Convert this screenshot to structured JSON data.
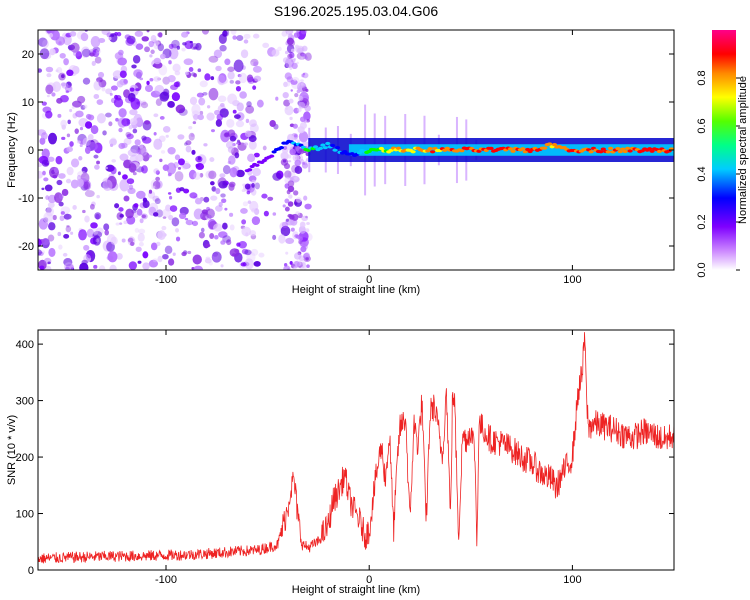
{
  "page": {
    "title": "S196.2025.195.03.04.G06"
  },
  "chart_data": [
    {
      "type": "heatmap",
      "title": "S196.2025.195.03.04.G06",
      "xlabel": "Height of straight line (km)",
      "ylabel": "Frequency (Hz)",
      "xlim": [
        -163,
        150
      ],
      "ylim": [
        -25,
        25
      ],
      "x_ticks": [
        -100,
        0,
        100
      ],
      "y_ticks": [
        -20,
        -10,
        0,
        10,
        20
      ],
      "colorbar": {
        "label": "Normalized spectral amplitude",
        "range": [
          0,
          1
        ],
        "ticks": [
          "0.0",
          "0.2",
          "0.4",
          "0.6",
          "0.8"
        ],
        "colors": [
          "#ffffff",
          "#8a00ff",
          "#0000ff",
          "#00e5ff",
          "#00ff00",
          "#ffff00",
          "#ff0000",
          "#ff0090"
        ]
      },
      "description_points": {
        "noise_region_x": [
          -163,
          -30
        ],
        "ridge": {
          "x": [
            -60,
            -50,
            -40,
            -30,
            -20,
            -10,
            0,
            10,
            20,
            40,
            60,
            80,
            90,
            100,
            120,
            150
          ],
          "freq": [
            -4,
            -2,
            2,
            0,
            1,
            -1,
            0,
            0,
            0,
            0,
            0,
            0,
            1,
            0,
            0,
            0
          ],
          "amplitude": [
            0.3,
            0.35,
            0.45,
            0.55,
            0.5,
            0.4,
            0.6,
            0.75,
            0.8,
            0.85,
            0.95,
            0.9,
            0.85,
            0.9,
            0.9,
            0.9
          ]
        }
      },
      "grid": false
    },
    {
      "type": "line",
      "xlabel": "Height of straight line (km)",
      "ylabel": "SNR (10 * v/v)",
      "xlim": [
        -163,
        150
      ],
      "ylim": [
        0,
        425
      ],
      "x_ticks": [
        -100,
        0,
        100
      ],
      "y_ticks": [
        0,
        100,
        200,
        300,
        400
      ],
      "color": "#ee2222",
      "series": [
        {
          "x": [
            -163,
            -150,
            -130,
            -110,
            -90,
            -75,
            -65,
            -55,
            -45,
            -40,
            -39,
            -37,
            -35,
            -33,
            -30,
            -25,
            -20,
            -18,
            -15,
            -12,
            -10,
            -8,
            -5,
            -2,
            0,
            2,
            4,
            6,
            8,
            10,
            12,
            14,
            15,
            18,
            20,
            22,
            24,
            26,
            28,
            30,
            32,
            34,
            36,
            38,
            40,
            41,
            42,
            44,
            46,
            48,
            50,
            52,
            53,
            54,
            56,
            58,
            60,
            65,
            70,
            75,
            80,
            85,
            90,
            92,
            95,
            100,
            103,
            105,
            106,
            107,
            108,
            110,
            115,
            120,
            125,
            130,
            135,
            140,
            145,
            150
          ],
          "y": [
            20,
            22,
            24,
            25,
            27,
            30,
            33,
            35,
            45,
            110,
            140,
            160,
            90,
            45,
            40,
            50,
            80,
            120,
            140,
            170,
            130,
            110,
            90,
            60,
            70,
            130,
            180,
            220,
            160,
            240,
            70,
            200,
            250,
            270,
            80,
            260,
            220,
            300,
            80,
            280,
            290,
            250,
            200,
            320,
            90,
            310,
            300,
            60,
            240,
            230,
            250,
            210,
            40,
            260,
            250,
            240,
            230,
            225,
            215,
            200,
            190,
            170,
            160,
            145,
            170,
            200,
            320,
            350,
            420,
            300,
            250,
            260,
            255,
            250,
            240,
            235,
            245,
            240,
            230,
            240
          ]
        }
      ],
      "grid": false
    }
  ]
}
